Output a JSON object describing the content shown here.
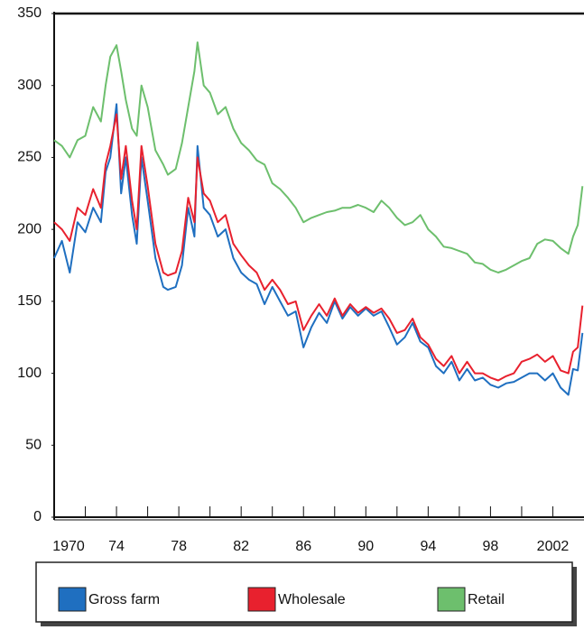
{
  "chart_data": {
    "type": "line",
    "x": [
      1970,
      1970.5,
      1971,
      1971.5,
      1972,
      1972.5,
      1973,
      1973.3,
      1973.6,
      1974,
      1974.3,
      1974.6,
      1975,
      1975.3,
      1975.6,
      1976,
      1976.5,
      1977,
      1977.3,
      1977.8,
      1978.2,
      1978.6,
      1979,
      1979.2,
      1979.6,
      1980,
      1980.5,
      1981,
      1981.5,
      1982,
      1982.5,
      1983,
      1983.5,
      1984,
      1984.5,
      1985,
      1985.5,
      1986,
      1986.5,
      1987,
      1987.5,
      1988,
      1988.5,
      1989,
      1989.5,
      1990,
      1990.5,
      1991,
      1991.5,
      1992,
      1992.5,
      1993,
      1993.5,
      1994,
      1994.5,
      1995,
      1995.5,
      1996,
      1996.5,
      1997,
      1997.5,
      1998,
      1998.5,
      1999,
      1999.5,
      2000,
      2000.5,
      2001,
      2001.5,
      2002,
      2002.5,
      2003,
      2003.3,
      2003.6,
      2003.9
    ],
    "series": [
      {
        "name": "Gross farm",
        "color": "#1f6fc0",
        "values": [
          180,
          192,
          170,
          205,
          198,
          215,
          205,
          240,
          250,
          287,
          225,
          250,
          210,
          190,
          250,
          220,
          180,
          160,
          158,
          160,
          175,
          215,
          195,
          258,
          215,
          210,
          195,
          200,
          180,
          170,
          165,
          162,
          148,
          160,
          150,
          140,
          143,
          118,
          132,
          142,
          135,
          150,
          138,
          146,
          140,
          145,
          140,
          143,
          132,
          120,
          125,
          135,
          122,
          118,
          105,
          100,
          108,
          95,
          103,
          95,
          97,
          92,
          90,
          93,
          94,
          97,
          100,
          100,
          95,
          100,
          90,
          85,
          103,
          102,
          128
        ]
      },
      {
        "name": "Wholesale",
        "color": "#e8212e",
        "values": [
          205,
          200,
          192,
          215,
          210,
          228,
          215,
          245,
          258,
          280,
          235,
          258,
          220,
          200,
          258,
          230,
          190,
          170,
          168,
          170,
          185,
          222,
          205,
          250,
          225,
          220,
          205,
          210,
          190,
          182,
          175,
          170,
          158,
          165,
          158,
          148,
          150,
          130,
          140,
          148,
          140,
          152,
          140,
          148,
          142,
          146,
          142,
          145,
          138,
          128,
          130,
          138,
          125,
          120,
          110,
          105,
          112,
          100,
          108,
          100,
          100,
          97,
          95,
          98,
          100,
          108,
          110,
          113,
          108,
          112,
          102,
          100,
          115,
          118,
          147
        ]
      },
      {
        "name": "Retail",
        "color": "#6dbf6d",
        "values": [
          262,
          258,
          250,
          262,
          265,
          285,
          275,
          300,
          320,
          328,
          310,
          290,
          270,
          265,
          300,
          285,
          255,
          245,
          238,
          242,
          260,
          285,
          310,
          330,
          300,
          295,
          280,
          285,
          270,
          260,
          255,
          248,
          245,
          232,
          228,
          222,
          215,
          205,
          208,
          210,
          212,
          213,
          215,
          215,
          217,
          215,
          212,
          220,
          215,
          208,
          203,
          205,
          210,
          200,
          195,
          188,
          187,
          185,
          183,
          177,
          176,
          172,
          170,
          172,
          175,
          178,
          180,
          190,
          193,
          192,
          187,
          183,
          195,
          203,
          230
        ]
      }
    ],
    "xlim": [
      1970,
      2004
    ],
    "xticks": [
      1970,
      {
        "value": 1974,
        "label": "74"
      },
      {
        "value": 1978,
        "label": "78"
      },
      {
        "value": 1982,
        "label": "82"
      },
      {
        "value": 1986,
        "label": "86"
      },
      {
        "value": 1990,
        "label": "90"
      },
      {
        "value": 1994,
        "label": "94"
      },
      {
        "value": 1998,
        "label": "98"
      },
      2002
    ],
    "xminorticks": [
      1972,
      1976,
      1980,
      1984,
      1988,
      1992,
      1996,
      2000
    ],
    "ylim": [
      0,
      350
    ],
    "yticks": [
      0,
      50,
      100,
      150,
      200,
      250,
      300,
      350
    ],
    "grid": false
  }
}
